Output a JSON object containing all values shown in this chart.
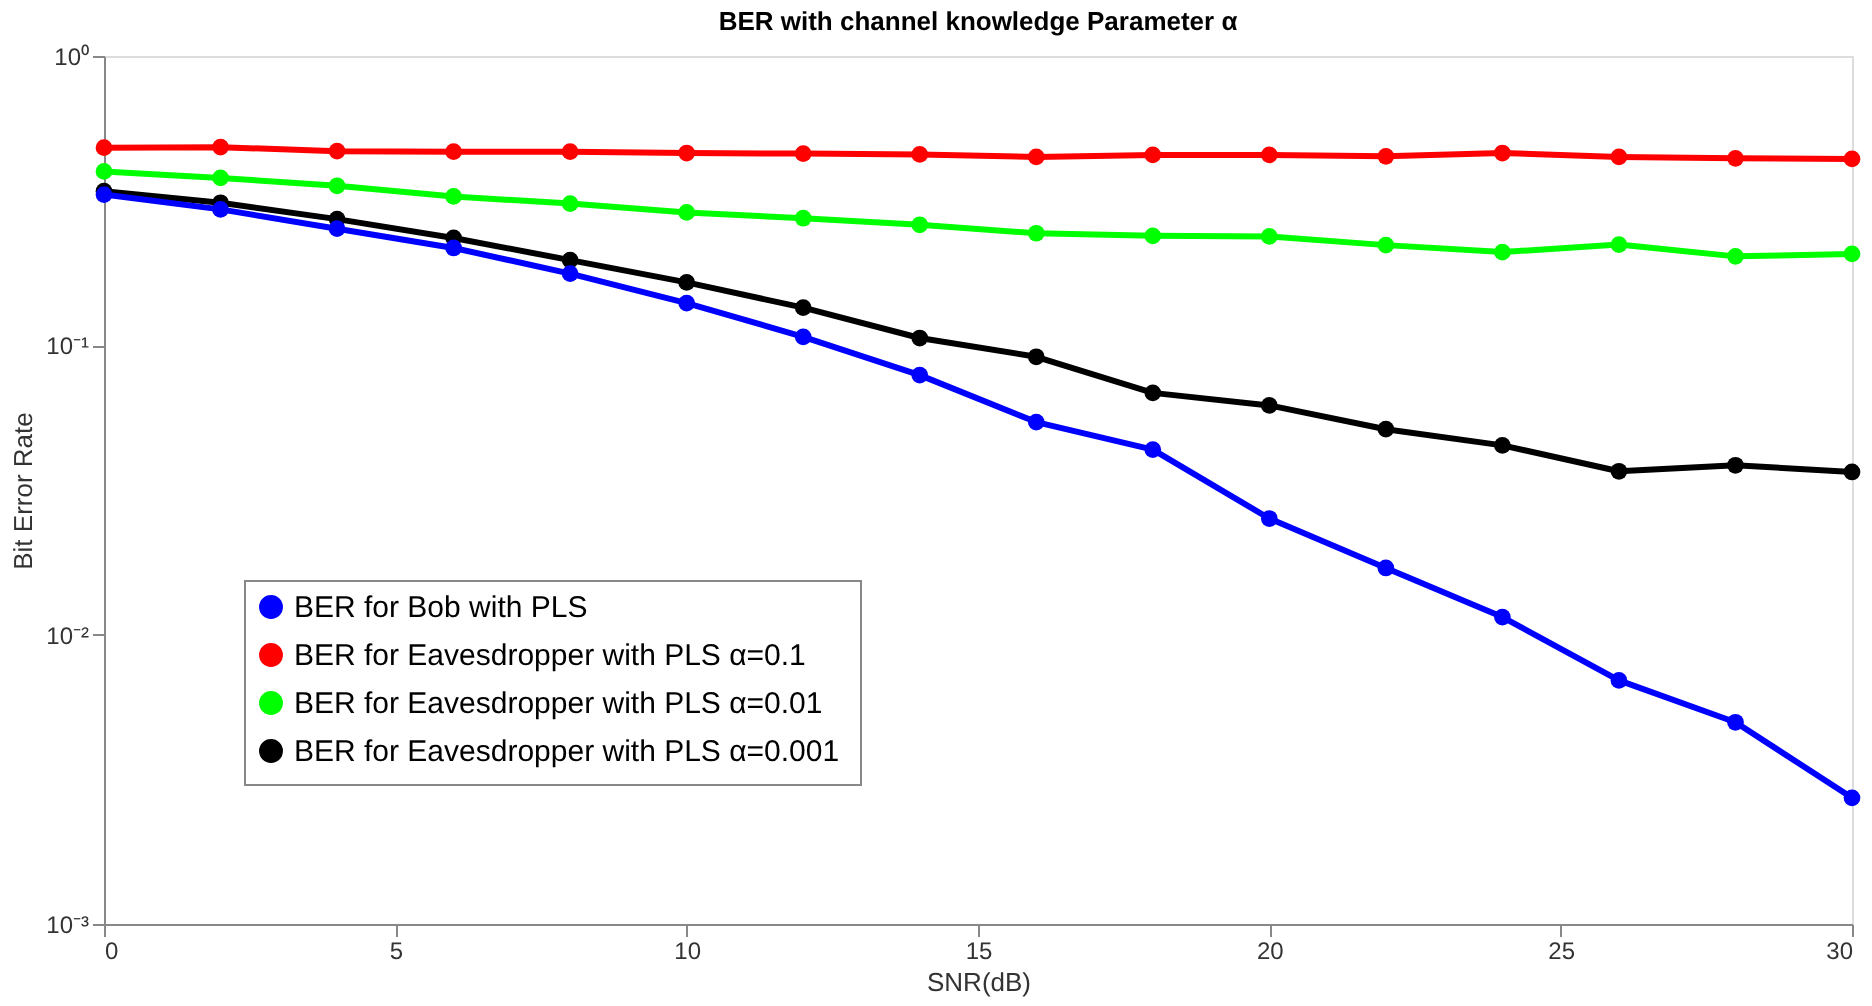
{
  "chart_data": {
    "type": "line",
    "title": "BER with channel knowledge Parameter α",
    "xlabel": "SNR(dB)",
    "ylabel": "Bit Error Rate",
    "x": [
      0,
      2,
      4,
      6,
      8,
      10,
      12,
      14,
      16,
      18,
      20,
      22,
      24,
      26,
      28,
      30
    ],
    "series": [
      {
        "name": "BER for Bob with PLS",
        "color": "#0000ff",
        "values": [
          0.332,
          0.295,
          0.253,
          0.217,
          0.177,
          0.14,
          0.107,
          0.0789,
          0.0543,
          0.0436,
          0.0252,
          0.017,
          0.0115,
          0.00695,
          0.00498,
          0.00273
        ]
      },
      {
        "name": "BER for Eavesdropper  with PLS α=0.1",
        "color": "#ff0000",
        "values": [
          0.482,
          0.484,
          0.469,
          0.467,
          0.467,
          0.462,
          0.46,
          0.457,
          0.448,
          0.455,
          0.455,
          0.45,
          0.462,
          0.448,
          0.443,
          0.441
        ]
      },
      {
        "name": "BER for Eavesdropper  with PLS α=0.01",
        "color": "#00ff00",
        "values": [
          0.399,
          0.379,
          0.356,
          0.327,
          0.309,
          0.288,
          0.275,
          0.261,
          0.244,
          0.239,
          0.238,
          0.222,
          0.21,
          0.223,
          0.203,
          0.207
        ]
      },
      {
        "name": "BER for Eavesdropper  with PLS α=0.001",
        "color": "#000000",
        "values": [
          0.341,
          0.311,
          0.273,
          0.235,
          0.197,
          0.165,
          0.135,
          0.106,
          0.0913,
          0.0685,
          0.062,
          0.0513,
          0.0451,
          0.0367,
          0.0385,
          0.0365
        ]
      }
    ],
    "xlim": [
      0,
      30
    ],
    "xticks": [
      0,
      5,
      10,
      15,
      20,
      25,
      30
    ],
    "ylim": [
      0.001,
      1
    ],
    "yticks": [
      {
        "value": 0.001,
        "label": "10⁻³"
      },
      {
        "value": 0.01,
        "label": "10⁻²"
      },
      {
        "value": 0.1,
        "label": "10⁻¹"
      },
      {
        "value": 1,
        "label": "10⁰"
      }
    ],
    "log": true,
    "grid": false,
    "legend": "bottom left",
    "marker": "circle",
    "line_style": "solid"
  }
}
